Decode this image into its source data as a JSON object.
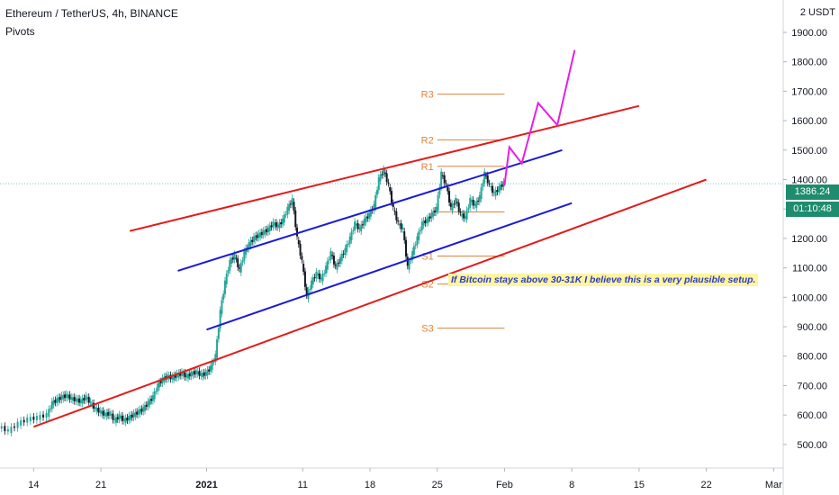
{
  "header": {
    "title": "Ethereum / TetherUS, 4h, BINANCE",
    "indicator": "Pivots",
    "currency": "2 USDT"
  },
  "price_tag": {
    "last_price": "1386.24",
    "countdown": "01:10:48"
  },
  "annotation": "If Bitcoin stays above 30-31K I believe this is a very plausible setup.",
  "colors": {
    "up": "#26a69a",
    "down": "#131722",
    "channel_outer": "#e31b1b",
    "channel_inner": "#1a1ad6",
    "projection": "#e61ee6",
    "pivot": "#e0823a"
  },
  "chart_data": {
    "type": "line",
    "title": "Ethereum / TetherUS, 4h, BINANCE",
    "x_ticks": [
      {
        "label": "14",
        "day": 14
      },
      {
        "label": "21",
        "day": 21
      },
      {
        "label": "2021",
        "day": 32,
        "bold": true
      },
      {
        "label": "11",
        "day": 42
      },
      {
        "label": "18",
        "day": 49
      },
      {
        "label": "25",
        "day": 56
      },
      {
        "label": "Feb",
        "day": 63
      },
      {
        "label": "8",
        "day": 70
      },
      {
        "label": "15",
        "day": 77
      },
      {
        "label": "22",
        "day": 84
      },
      {
        "label": "Mar",
        "day": 91
      }
    ],
    "x_unit": "days since Dec 1 2020",
    "x_range": [
      10.5,
      92
    ],
    "y_range": [
      420,
      2010
    ],
    "y_ticks": [
      "500.00",
      "600.00",
      "700.00",
      "800.00",
      "900.00",
      "1000.00",
      "1100.00",
      "1200.00",
      "1300.00",
      "1400.00",
      "1500.00",
      "1600.00",
      "1700.00",
      "1800.00",
      "1900.00"
    ],
    "price_series": [
      [
        10.5,
        560
      ],
      [
        11.5,
        545
      ],
      [
        12.5,
        570
      ],
      [
        13.5,
        585
      ],
      [
        14.5,
        590
      ],
      [
        15.5,
        600
      ],
      [
        16,
        640
      ],
      [
        16.5,
        650
      ],
      [
        17,
        660
      ],
      [
        17.5,
        665
      ],
      [
        18,
        655
      ],
      [
        18.5,
        650
      ],
      [
        19,
        645
      ],
      [
        19.5,
        660
      ],
      [
        20,
        640
      ],
      [
        20.5,
        620
      ],
      [
        21,
        610
      ],
      [
        21.5,
        600
      ],
      [
        22,
        605
      ],
      [
        22.5,
        580
      ],
      [
        23,
        595
      ],
      [
        23.5,
        580
      ],
      [
        24,
        590
      ],
      [
        24.5,
        600
      ],
      [
        25,
        610
      ],
      [
        25.5,
        620
      ],
      [
        26,
        640
      ],
      [
        26.5,
        660
      ],
      [
        27,
        700
      ],
      [
        27.5,
        720
      ],
      [
        28,
        730
      ],
      [
        28.5,
        725
      ],
      [
        29,
        735
      ],
      [
        29.5,
        740
      ],
      [
        30,
        730
      ],
      [
        30.5,
        740
      ],
      [
        31,
        745
      ],
      [
        31.5,
        735
      ],
      [
        32,
        740
      ],
      [
        32.5,
        760
      ],
      [
        33,
        800
      ],
      [
        33.5,
        950
      ],
      [
        34,
        1050
      ],
      [
        34.5,
        1120
      ],
      [
        35,
        1140
      ],
      [
        35.5,
        1090
      ],
      [
        36,
        1150
      ],
      [
        36.5,
        1180
      ],
      [
        37,
        1200
      ],
      [
        37.5,
        1210
      ],
      [
        38,
        1220
      ],
      [
        38.5,
        1230
      ],
      [
        39,
        1250
      ],
      [
        39.5,
        1240
      ],
      [
        40,
        1260
      ],
      [
        40.5,
        1300
      ],
      [
        41,
        1330
      ],
      [
        41.5,
        1200
      ],
      [
        42,
        1120
      ],
      [
        42.5,
        1000
      ],
      [
        43,
        1050
      ],
      [
        43.5,
        1080
      ],
      [
        44,
        1060
      ],
      [
        44.5,
        1100
      ],
      [
        45,
        1150
      ],
      [
        45.5,
        1100
      ],
      [
        46,
        1130
      ],
      [
        46.5,
        1160
      ],
      [
        47,
        1200
      ],
      [
        47.5,
        1250
      ],
      [
        48,
        1230
      ],
      [
        48.5,
        1260
      ],
      [
        49,
        1280
      ],
      [
        49.5,
        1310
      ],
      [
        50,
        1400
      ],
      [
        50.5,
        1430
      ],
      [
        51,
        1380
      ],
      [
        51.5,
        1300
      ],
      [
        52,
        1250
      ],
      [
        52.5,
        1230
      ],
      [
        53,
        1100
      ],
      [
        53.5,
        1150
      ],
      [
        54,
        1200
      ],
      [
        54.5,
        1250
      ],
      [
        55,
        1260
      ],
      [
        55.5,
        1280
      ],
      [
        56,
        1300
      ],
      [
        56.5,
        1420
      ],
      [
        57,
        1380
      ],
      [
        57.5,
        1300
      ],
      [
        58,
        1330
      ],
      [
        58.5,
        1280
      ],
      [
        59,
        1270
      ],
      [
        59.5,
        1330
      ],
      [
        60,
        1310
      ],
      [
        60.5,
        1340
      ],
      [
        61,
        1420
      ],
      [
        61.5,
        1380
      ],
      [
        62,
        1350
      ],
      [
        62.5,
        1370
      ],
      [
        63,
        1386
      ]
    ],
    "lines": [
      {
        "name": "outer-upper",
        "color": "#e31b1b",
        "points": [
          [
            24,
            1225
          ],
          [
            77,
            1650
          ]
        ]
      },
      {
        "name": "outer-lower",
        "color": "#e31b1b",
        "points": [
          [
            14,
            560
          ],
          [
            84,
            1400
          ]
        ]
      },
      {
        "name": "inner-upper",
        "color": "#1a1ad6",
        "points": [
          [
            29,
            1090
          ],
          [
            69,
            1500
          ]
        ]
      },
      {
        "name": "inner-lower",
        "color": "#1a1ad6",
        "points": [
          [
            32,
            890
          ],
          [
            70,
            1320
          ]
        ]
      },
      {
        "name": "projection",
        "color": "#e61ee6",
        "points": [
          [
            63,
            1380
          ],
          [
            63.5,
            1510
          ],
          [
            64.8,
            1455
          ],
          [
            66.5,
            1660
          ],
          [
            68.5,
            1585
          ],
          [
            70.3,
            1840
          ]
        ]
      }
    ],
    "pivots": [
      {
        "label": "R3",
        "value": 1690
      },
      {
        "label": "R2",
        "value": 1535
      },
      {
        "label": "R1",
        "value": 1445
      },
      {
        "label": "S1",
        "value": 1140
      },
      {
        "label": "S2",
        "value": 1045
      },
      {
        "label": "S3",
        "value": 895
      }
    ],
    "pivot_extra_levels": [
      1290
    ]
  }
}
